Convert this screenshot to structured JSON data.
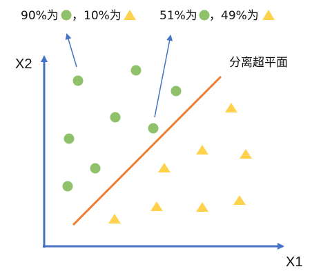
{
  "annotations": {
    "left": {
      "part1": "90%为",
      "part2": "，10%为"
    },
    "right": {
      "part1": "51%为",
      "part2": "，49%为"
    }
  },
  "axes": {
    "x_label": "X1",
    "y_label": "X2"
  },
  "hyperplane_label": "分离超平面",
  "colors": {
    "axis": "#4472c4",
    "circle": "#8fc06a",
    "triangle": "#ffd24d",
    "hyperplane": "#ed7d31",
    "pointer": "#4472c4"
  },
  "point_classes": {
    "circles": 10,
    "triangles": 10
  }
}
